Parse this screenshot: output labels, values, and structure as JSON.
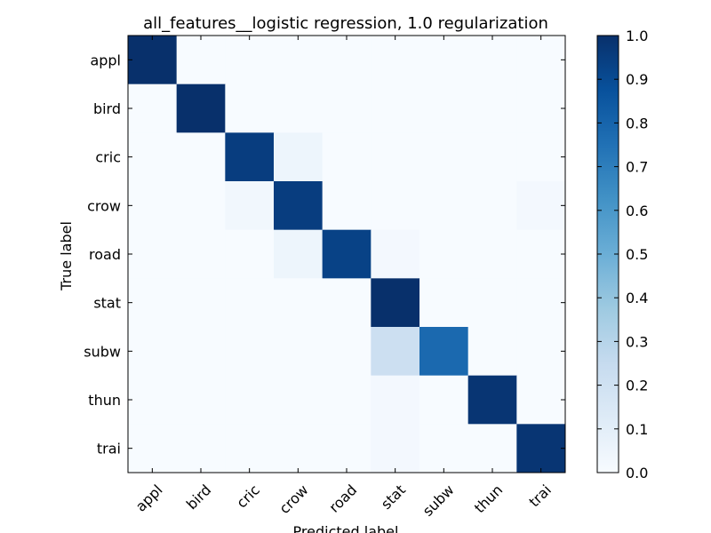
{
  "chart_data": {
    "type": "heatmap",
    "title": "all_features__logistic regression, 1.0 regularization",
    "xlabel": "Predicted label",
    "ylabel": "True label",
    "x_categories": [
      "appl",
      "bird",
      "cric",
      "crow",
      "road",
      "stat",
      "subw",
      "thun",
      "trai"
    ],
    "y_categories": [
      "appl",
      "bird",
      "cric",
      "crow",
      "road",
      "stat",
      "subw",
      "thun",
      "trai"
    ],
    "values": [
      [
        1.0,
        0.0,
        0.0,
        0.0,
        0.0,
        0.0,
        0.0,
        0.0,
        0.0
      ],
      [
        0.0,
        1.0,
        0.0,
        0.0,
        0.0,
        0.0,
        0.0,
        0.0,
        0.0
      ],
      [
        0.0,
        0.0,
        0.95,
        0.05,
        0.0,
        0.0,
        0.0,
        0.0,
        0.0
      ],
      [
        0.0,
        0.0,
        0.03,
        0.95,
        0.0,
        0.0,
        0.0,
        0.0,
        0.02
      ],
      [
        0.0,
        0.0,
        0.0,
        0.05,
        0.93,
        0.02,
        0.0,
        0.0,
        0.0
      ],
      [
        0.0,
        0.0,
        0.0,
        0.0,
        0.0,
        1.0,
        0.0,
        0.0,
        0.0
      ],
      [
        0.0,
        0.0,
        0.0,
        0.0,
        0.0,
        0.22,
        0.78,
        0.0,
        0.0
      ],
      [
        0.0,
        0.0,
        0.0,
        0.0,
        0.0,
        0.02,
        0.0,
        0.98,
        0.0
      ],
      [
        0.0,
        0.0,
        0.0,
        0.0,
        0.0,
        0.02,
        0.0,
        0.0,
        0.98
      ]
    ],
    "colorbar": {
      "range": [
        0.0,
        1.0
      ],
      "ticks": [
        "0.0",
        "0.1",
        "0.2",
        "0.3",
        "0.4",
        "0.5",
        "0.6",
        "0.7",
        "0.8",
        "0.9",
        "1.0"
      ],
      "colormap": [
        "#f7fbff",
        "#deebf7",
        "#c6dbef",
        "#9ecae1",
        "#6baed6",
        "#4292c6",
        "#2171b5",
        "#08519c",
        "#08306b"
      ]
    },
    "grid": false
  }
}
